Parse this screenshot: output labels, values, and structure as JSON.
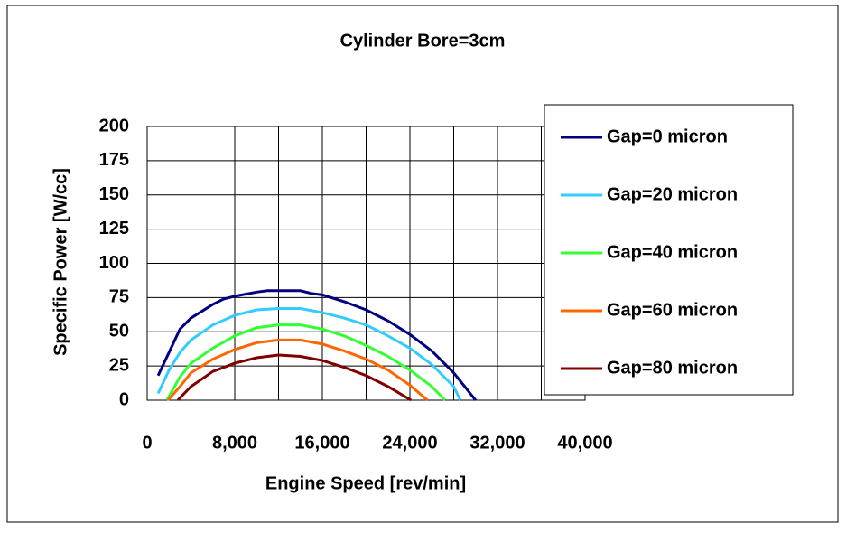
{
  "chart_data": {
    "type": "line",
    "title": "Cylinder Bore=3cm",
    "xlabel": "Engine Speed [rev/min]",
    "ylabel": "Specific Power [W/cc]",
    "xlim": [
      0,
      40000
    ],
    "ylim": [
      0,
      200
    ],
    "xticks": [
      0,
      {
        "value": 8000,
        "label": "8,000"
      },
      {
        "value": 16000,
        "label": "16,000"
      },
      {
        "value": 24000,
        "label": "24,000"
      },
      {
        "value": 32000,
        "label": "32,000"
      },
      {
        "value": 40000,
        "label": "40,000"
      }
    ],
    "xminorticks": [
      4000,
      12000,
      20000,
      28000,
      36000
    ],
    "yticks": [
      0,
      25,
      50,
      75,
      100,
      125,
      150,
      175,
      200
    ],
    "grid": true,
    "legend": "right",
    "series": [
      {
        "name": "Gap=0 micron",
        "color": "#000080",
        "x": [
          1000,
          2000,
          3000,
          4000,
          6000,
          7000,
          8000,
          10000,
          11000,
          12000,
          14000,
          15000,
          16000,
          18000,
          20000,
          22000,
          24000,
          26000,
          27000,
          28000,
          29000,
          30000
        ],
        "values": [
          18,
          35,
          52,
          60,
          70,
          74,
          76,
          79,
          80,
          80,
          80,
          78,
          77,
          72,
          66,
          58,
          48,
          36,
          28,
          20,
          10,
          0
        ]
      },
      {
        "name": "Gap=20 micron",
        "color": "#33ccff",
        "x": [
          1000,
          2000,
          3000,
          4000,
          6000,
          8000,
          10000,
          12000,
          14000,
          16000,
          18000,
          20000,
          22000,
          24000,
          26000,
          28000,
          28600
        ],
        "values": [
          5,
          22,
          35,
          44,
          55,
          62,
          66,
          67,
          67,
          64,
          60,
          55,
          47,
          38,
          26,
          10,
          0
        ]
      },
      {
        "name": "Gap=40 micron",
        "color": "#33ff33",
        "x": [
          1800,
          3000,
          4000,
          6000,
          8000,
          10000,
          12000,
          14000,
          16000,
          18000,
          20000,
          22000,
          24000,
          26000,
          27200
        ],
        "values": [
          0,
          17,
          27,
          38,
          47,
          53,
          55,
          55,
          52,
          47,
          40,
          32,
          22,
          10,
          0
        ]
      },
      {
        "name": "Gap=60 micron",
        "color": "#ff6600",
        "x": [
          1900,
          3000,
          4000,
          6000,
          8000,
          10000,
          12000,
          14000,
          16000,
          18000,
          20000,
          22000,
          24000,
          25600
        ],
        "values": [
          0,
          10,
          20,
          30,
          37,
          42,
          44,
          44,
          41,
          36,
          30,
          22,
          11,
          0
        ]
      },
      {
        "name": "Gap=80 micron",
        "color": "#800000",
        "x": [
          2800,
          4000,
          6000,
          8000,
          10000,
          12000,
          14000,
          16000,
          18000,
          20000,
          22000,
          24100
        ],
        "values": [
          0,
          10,
          21,
          27,
          31,
          33,
          32,
          29,
          24,
          18,
          10,
          0
        ]
      }
    ]
  }
}
